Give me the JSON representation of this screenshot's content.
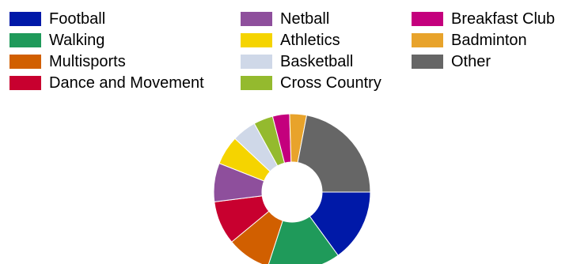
{
  "chart_data": {
    "type": "pie",
    "subtype": "donut",
    "title": "",
    "legend_position": "top",
    "categories": [
      "Football",
      "Walking",
      "Multisports",
      "Dance and Movement",
      "Netball",
      "Athletics",
      "Basketball",
      "Cross Country",
      "Breakfast Club",
      "Badminton",
      "Other"
    ],
    "values": [
      15,
      15,
      9,
      9,
      8,
      6,
      5,
      4,
      3.5,
      3.5,
      22
    ],
    "colors": [
      "#0019a8",
      "#1f9a5a",
      "#d15f00",
      "#c8002f",
      "#8e4f9c",
      "#f5d400",
      "#cfd8e8",
      "#94ba2e",
      "#c4007d",
      "#e8a32b",
      "#666666"
    ]
  }
}
